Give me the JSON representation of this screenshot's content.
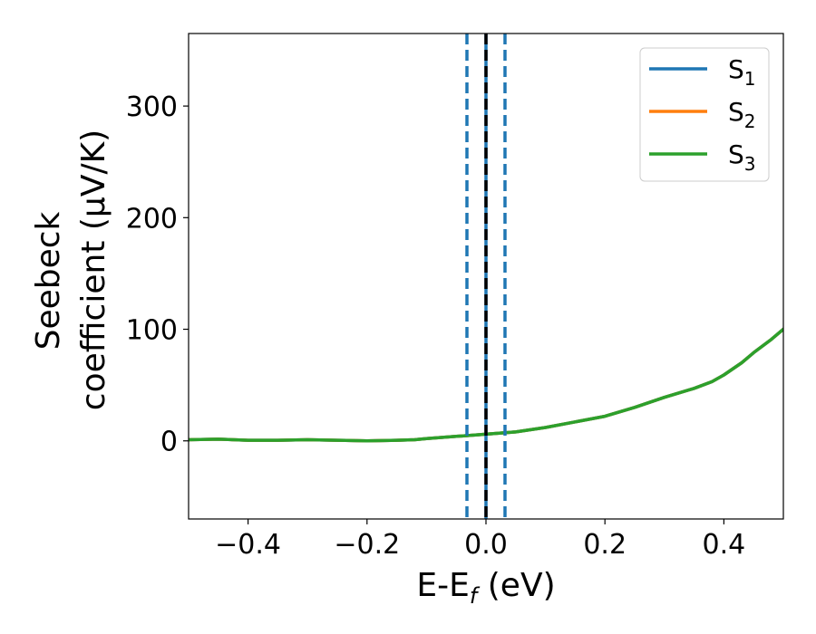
{
  "chart_data": {
    "type": "line",
    "title": "",
    "xlabel": "E-E_f (eV)",
    "xlabel_parts": {
      "main": "E-E",
      "sub": "f",
      "tail": " (eV)"
    },
    "ylabel_line1": "Seebeck",
    "ylabel_line2": "coefficient  (μV/K)",
    "xlim": [
      -0.5,
      0.5
    ],
    "ylim": [
      -70,
      365
    ],
    "xticks": [
      -0.4,
      -0.2,
      0.0,
      0.2,
      0.4
    ],
    "xtick_labels": [
      "−0.4",
      "−0.2",
      "0.0",
      "0.2",
      "0.4"
    ],
    "yticks": [
      0,
      100,
      200,
      300
    ],
    "ytick_labels": [
      "0",
      "100",
      "200",
      "300"
    ],
    "grid": false,
    "legend_position": "top-right",
    "series": [
      {
        "name": "S1",
        "label_main": "S",
        "label_sub": "1",
        "color": "#1f77b4",
        "x": [
          -0.5,
          -0.45,
          -0.4,
          -0.35,
          -0.3,
          -0.25,
          -0.2,
          -0.15,
          -0.12,
          -0.1,
          -0.05,
          0.0,
          0.05,
          0.1,
          0.15,
          0.2,
          0.25,
          0.3,
          0.35,
          0.38,
          0.4,
          0.43,
          0.45,
          0.48,
          0.5
        ],
        "y": [
          1,
          1.5,
          0.5,
          0.5,
          1,
          0.5,
          0,
          0.5,
          1,
          2,
          4,
          6,
          8,
          12,
          17,
          22,
          30,
          39,
          47,
          53,
          59,
          70,
          79,
          91,
          100
        ]
      },
      {
        "name": "S2",
        "label_main": "S",
        "label_sub": "2",
        "color": "#ff7f0e",
        "x": [
          -0.5,
          -0.45,
          -0.4,
          -0.35,
          -0.3,
          -0.25,
          -0.2,
          -0.15,
          -0.12,
          -0.1,
          -0.05,
          0.0,
          0.05,
          0.1,
          0.15,
          0.2,
          0.25,
          0.3,
          0.35,
          0.38,
          0.4,
          0.43,
          0.45,
          0.48,
          0.5
        ],
        "y": [
          1,
          1.5,
          0.5,
          0.5,
          1,
          0.5,
          0,
          0.5,
          1,
          2,
          4,
          6,
          8,
          12,
          17,
          22,
          30,
          39,
          47,
          53,
          59,
          70,
          79,
          91,
          100
        ]
      },
      {
        "name": "S3",
        "label_main": "S",
        "label_sub": "3",
        "color": "#2ca02c",
        "x": [
          -0.5,
          -0.45,
          -0.4,
          -0.35,
          -0.3,
          -0.25,
          -0.2,
          -0.15,
          -0.12,
          -0.1,
          -0.05,
          0.0,
          0.05,
          0.1,
          0.15,
          0.2,
          0.25,
          0.3,
          0.35,
          0.38,
          0.4,
          0.43,
          0.45,
          0.48,
          0.5
        ],
        "y": [
          1,
          1.5,
          0.5,
          0.5,
          1,
          0.5,
          0,
          0.5,
          1,
          2,
          4,
          6,
          8,
          12,
          17,
          22,
          30,
          39,
          47,
          53,
          59,
          70,
          79,
          91,
          100
        ]
      }
    ],
    "vertical_lines": [
      {
        "x": -0.032,
        "style": "dashed",
        "color": "#1f77b4"
      },
      {
        "x": 0.032,
        "style": "dashed",
        "color": "#1f77b4"
      },
      {
        "x": 0.0,
        "style": "solid",
        "color": "#1f77b4"
      },
      {
        "x": 0.0,
        "style": "dashed",
        "color": "#000000"
      }
    ]
  }
}
